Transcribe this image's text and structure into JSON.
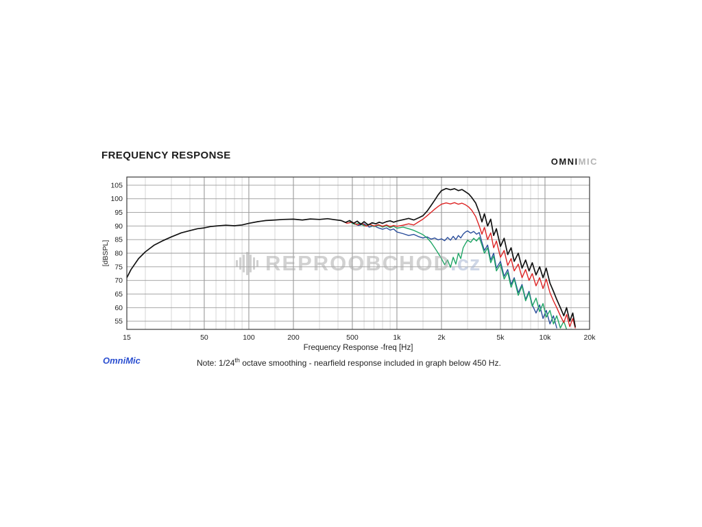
{
  "header": {
    "title": "FREQUENCY RESPONSE",
    "logo": {
      "omni": "OMNI",
      "mic": "MIC"
    }
  },
  "watermark": {
    "icon": "waveform-icon",
    "text": "REPROOBCHOD",
    "suffix": ".cz"
  },
  "footer": {
    "brand": "OmniMic",
    "note_prefix": "Note: 1/24",
    "note_sup": "th",
    "note_rest": " octave smoothing - nearfield response included in graph below 450 Hz."
  },
  "chart_data": {
    "type": "line",
    "title": "FREQUENCY RESPONSE",
    "xlabel": "Frequency Response -freq [Hz]",
    "ylabel": "[dBSPL]",
    "x_scale": "log",
    "xlim": [
      15,
      20000
    ],
    "ylim": [
      52,
      108
    ],
    "grid": true,
    "legend": "none",
    "x_ticks": [
      {
        "v": 15,
        "label": "15"
      },
      {
        "v": 50,
        "label": "50"
      },
      {
        "v": 100,
        "label": "100"
      },
      {
        "v": 200,
        "label": "200"
      },
      {
        "v": 500,
        "label": "500"
      },
      {
        "v": 1000,
        "label": "1k"
      },
      {
        "v": 2000,
        "label": "2k"
      },
      {
        "v": 5000,
        "label": "5k"
      },
      {
        "v": 10000,
        "label": "10k"
      },
      {
        "v": 20000,
        "label": "20k"
      }
    ],
    "y_ticks": [
      55,
      60,
      65,
      70,
      75,
      80,
      85,
      90,
      95,
      100,
      105
    ],
    "series": [
      {
        "name": "blue",
        "color": "#2a4d9b",
        "width": 1.4,
        "points": [
          [
            500,
            91.2
          ],
          [
            550,
            90.2
          ],
          [
            600,
            90.8
          ],
          [
            650,
            89.6
          ],
          [
            700,
            90.1
          ],
          [
            750,
            89.3
          ],
          [
            800,
            88.8
          ],
          [
            850,
            89.3
          ],
          [
            900,
            88.5
          ],
          [
            950,
            88.9
          ],
          [
            1000,
            87.8
          ],
          [
            1100,
            87.2
          ],
          [
            1200,
            86.5
          ],
          [
            1300,
            86.9
          ],
          [
            1400,
            86.1
          ],
          [
            1500,
            85.6
          ],
          [
            1600,
            86
          ],
          [
            1700,
            85.2
          ],
          [
            1800,
            85.6
          ],
          [
            1900,
            84.9
          ],
          [
            2000,
            85.3
          ],
          [
            2100,
            84.6
          ],
          [
            2200,
            85.8
          ],
          [
            2300,
            84.8
          ],
          [
            2400,
            86.2
          ],
          [
            2500,
            85
          ],
          [
            2600,
            86.5
          ],
          [
            2700,
            85.6
          ],
          [
            2800,
            87
          ],
          [
            2900,
            87.8
          ],
          [
            3000,
            88.2
          ],
          [
            3150,
            87.4
          ],
          [
            3300,
            88
          ],
          [
            3450,
            87
          ],
          [
            3600,
            87.6
          ],
          [
            3750,
            84
          ],
          [
            3900,
            81
          ],
          [
            4100,
            83
          ],
          [
            4300,
            77.5
          ],
          [
            4500,
            80
          ],
          [
            4700,
            74.5
          ],
          [
            5000,
            77
          ],
          [
            5300,
            71.5
          ],
          [
            5600,
            74
          ],
          [
            5900,
            68.5
          ],
          [
            6200,
            71
          ],
          [
            6600,
            65.5
          ],
          [
            7000,
            68.5
          ],
          [
            7400,
            63
          ],
          [
            7800,
            66
          ],
          [
            8200,
            61
          ],
          [
            8700,
            58
          ],
          [
            9200,
            61
          ],
          [
            9700,
            56
          ],
          [
            10200,
            59
          ],
          [
            10800,
            54
          ],
          [
            11400,
            57
          ],
          [
            12000,
            52.5
          ]
        ]
      },
      {
        "name": "green",
        "color": "#1ea565",
        "width": 1.4,
        "points": [
          [
            480,
            91.5
          ],
          [
            520,
            90.6
          ],
          [
            560,
            91.2
          ],
          [
            600,
            90
          ],
          [
            650,
            90.6
          ],
          [
            700,
            89.8
          ],
          [
            750,
            90.3
          ],
          [
            800,
            89.6
          ],
          [
            850,
            90.1
          ],
          [
            900,
            89.4
          ],
          [
            950,
            89.9
          ],
          [
            1000,
            89.2
          ],
          [
            1100,
            89.6
          ],
          [
            1200,
            89
          ],
          [
            1300,
            88.4
          ],
          [
            1400,
            87.6
          ],
          [
            1500,
            86.8
          ],
          [
            1600,
            85.6
          ],
          [
            1700,
            84
          ],
          [
            1800,
            82
          ],
          [
            1900,
            80
          ],
          [
            2000,
            78
          ],
          [
            2100,
            75.8
          ],
          [
            2200,
            77.5
          ],
          [
            2300,
            74.8
          ],
          [
            2400,
            78.5
          ],
          [
            2500,
            76
          ],
          [
            2600,
            80
          ],
          [
            2700,
            78
          ],
          [
            2800,
            82
          ],
          [
            2900,
            83.5
          ],
          [
            3000,
            84.8
          ],
          [
            3150,
            84
          ],
          [
            3300,
            85.5
          ],
          [
            3450,
            84.5
          ],
          [
            3600,
            85.8
          ],
          [
            3750,
            83
          ],
          [
            3900,
            80
          ],
          [
            4100,
            82
          ],
          [
            4300,
            76.5
          ],
          [
            4500,
            79
          ],
          [
            4700,
            73.5
          ],
          [
            5000,
            76
          ],
          [
            5300,
            70.5
          ],
          [
            5600,
            73
          ],
          [
            5900,
            67.5
          ],
          [
            6200,
            70.5
          ],
          [
            6600,
            64.5
          ],
          [
            7000,
            68
          ],
          [
            7400,
            62.5
          ],
          [
            7800,
            65.5
          ],
          [
            8200,
            60.5
          ],
          [
            8700,
            63.5
          ],
          [
            9200,
            58.5
          ],
          [
            9700,
            61.5
          ],
          [
            10200,
            56.5
          ],
          [
            10800,
            59
          ],
          [
            11400,
            54
          ],
          [
            12000,
            57
          ],
          [
            12700,
            52.5
          ],
          [
            13400,
            55
          ],
          [
            14000,
            52
          ]
        ]
      },
      {
        "name": "red",
        "color": "#dd2222",
        "width": 1.4,
        "points": [
          [
            430,
            91.8
          ],
          [
            460,
            91
          ],
          [
            500,
            91.4
          ],
          [
            540,
            90.4
          ],
          [
            580,
            91
          ],
          [
            620,
            89.9
          ],
          [
            660,
            90.6
          ],
          [
            700,
            90
          ],
          [
            750,
            90.5
          ],
          [
            800,
            89.9
          ],
          [
            850,
            90.4
          ],
          [
            900,
            89.8
          ],
          [
            950,
            90.2
          ],
          [
            1000,
            89.9
          ],
          [
            1100,
            90.3
          ],
          [
            1200,
            90.8
          ],
          [
            1300,
            90.4
          ],
          [
            1400,
            91.5
          ],
          [
            1500,
            92.5
          ],
          [
            1600,
            93.8
          ],
          [
            1700,
            95
          ],
          [
            1800,
            96.2
          ],
          [
            1900,
            97.2
          ],
          [
            2000,
            98
          ],
          [
            2150,
            98.5
          ],
          [
            2300,
            98.1
          ],
          [
            2450,
            98.6
          ],
          [
            2600,
            98
          ],
          [
            2750,
            98.4
          ],
          [
            2900,
            97.8
          ],
          [
            3050,
            97
          ],
          [
            3200,
            95.8
          ],
          [
            3400,
            93.5
          ],
          [
            3600,
            90
          ],
          [
            3750,
            87
          ],
          [
            3900,
            89.5
          ],
          [
            4100,
            85
          ],
          [
            4300,
            87.5
          ],
          [
            4500,
            82
          ],
          [
            4700,
            84.5
          ],
          [
            5000,
            78.5
          ],
          [
            5300,
            81
          ],
          [
            5600,
            75.5
          ],
          [
            5900,
            78
          ],
          [
            6200,
            73.5
          ],
          [
            6600,
            76
          ],
          [
            7000,
            71
          ],
          [
            7400,
            74
          ],
          [
            7800,
            70
          ],
          [
            8200,
            72.5
          ],
          [
            8700,
            68
          ],
          [
            9200,
            71
          ],
          [
            9700,
            67
          ],
          [
            10200,
            70.5
          ],
          [
            10800,
            65.5
          ],
          [
            11400,
            62.5
          ],
          [
            12000,
            60
          ],
          [
            12700,
            57
          ],
          [
            13400,
            54.5
          ],
          [
            14000,
            57.5
          ],
          [
            14700,
            53
          ],
          [
            15400,
            56
          ],
          [
            16000,
            52.5
          ]
        ]
      },
      {
        "name": "black",
        "color": "#111111",
        "width": 1.7,
        "points": [
          [
            15,
            71
          ],
          [
            16,
            74
          ],
          [
            18,
            78
          ],
          [
            20,
            80.5
          ],
          [
            23,
            83
          ],
          [
            26,
            84.5
          ],
          [
            30,
            86
          ],
          [
            35,
            87.5
          ],
          [
            40,
            88.3
          ],
          [
            45,
            89
          ],
          [
            50,
            89.3
          ],
          [
            55,
            89.8
          ],
          [
            60,
            90
          ],
          [
            70,
            90.3
          ],
          [
            80,
            90.1
          ],
          [
            90,
            90.4
          ],
          [
            100,
            91
          ],
          [
            115,
            91.6
          ],
          [
            130,
            92
          ],
          [
            150,
            92.2
          ],
          [
            170,
            92.4
          ],
          [
            200,
            92.5
          ],
          [
            230,
            92.2
          ],
          [
            260,
            92.6
          ],
          [
            300,
            92.4
          ],
          [
            340,
            92.7
          ],
          [
            380,
            92.3
          ],
          [
            420,
            92
          ],
          [
            450,
            91.3
          ],
          [
            480,
            92
          ],
          [
            510,
            91
          ],
          [
            540,
            91.8
          ],
          [
            570,
            90.6
          ],
          [
            600,
            91.6
          ],
          [
            640,
            90.4
          ],
          [
            680,
            91.2
          ],
          [
            720,
            90.8
          ],
          [
            760,
            91.4
          ],
          [
            800,
            91
          ],
          [
            850,
            91.6
          ],
          [
            900,
            91.9
          ],
          [
            950,
            91.4
          ],
          [
            1000,
            91.8
          ],
          [
            1100,
            92.3
          ],
          [
            1200,
            92.8
          ],
          [
            1300,
            92.2
          ],
          [
            1400,
            93
          ],
          [
            1500,
            93.8
          ],
          [
            1600,
            95.5
          ],
          [
            1700,
            97.5
          ],
          [
            1800,
            99.5
          ],
          [
            1900,
            101.5
          ],
          [
            2000,
            103
          ],
          [
            2150,
            103.8
          ],
          [
            2300,
            103.3
          ],
          [
            2450,
            103.7
          ],
          [
            2600,
            103
          ],
          [
            2750,
            103.4
          ],
          [
            2900,
            102.6
          ],
          [
            3050,
            101.8
          ],
          [
            3200,
            100.5
          ],
          [
            3400,
            98.5
          ],
          [
            3600,
            95
          ],
          [
            3750,
            91.5
          ],
          [
            3900,
            94.5
          ],
          [
            4100,
            90
          ],
          [
            4300,
            92.5
          ],
          [
            4500,
            86.5
          ],
          [
            4700,
            89
          ],
          [
            5000,
            82.5
          ],
          [
            5300,
            85.5
          ],
          [
            5600,
            79.5
          ],
          [
            5900,
            82
          ],
          [
            6200,
            77
          ],
          [
            6600,
            80
          ],
          [
            7000,
            74.5
          ],
          [
            7400,
            77.5
          ],
          [
            7800,
            73.5
          ],
          [
            8200,
            76.5
          ],
          [
            8700,
            72
          ],
          [
            9200,
            75
          ],
          [
            9700,
            71
          ],
          [
            10200,
            74.5
          ],
          [
            10800,
            69
          ],
          [
            11400,
            66
          ],
          [
            12000,
            63
          ],
          [
            12700,
            60
          ],
          [
            13400,
            57
          ],
          [
            14000,
            60
          ],
          [
            14700,
            55
          ],
          [
            15400,
            58
          ],
          [
            16000,
            53
          ]
        ]
      }
    ]
  }
}
